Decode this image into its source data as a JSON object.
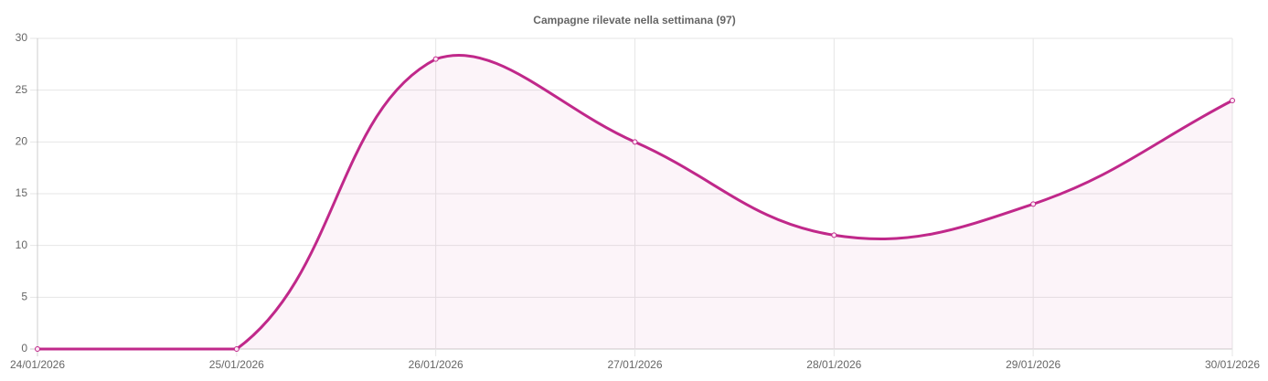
{
  "chart_data": {
    "type": "line",
    "title": "Campagne rilevate nella settimana (97)",
    "categories": [
      "24/01/2026",
      "25/01/2026",
      "26/01/2026",
      "27/01/2026",
      "28/01/2026",
      "29/01/2026",
      "30/01/2026"
    ],
    "series": [
      {
        "color": "#c0288a",
        "values": [
          0,
          0,
          28,
          20,
          11,
          14,
          24
        ]
      }
    ],
    "ylim": [
      0,
      30
    ],
    "yticks": [
      0,
      5,
      10,
      15,
      20,
      25,
      30
    ],
    "grid": true,
    "fill": true
  }
}
